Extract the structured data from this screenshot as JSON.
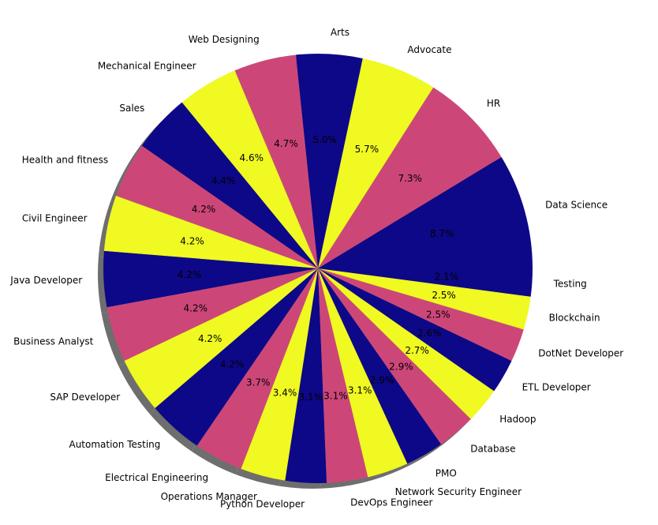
{
  "chart_data": {
    "type": "pie",
    "title": "",
    "shadow": true,
    "categories": [
      "Data Science",
      "HR",
      "Advocate",
      "Arts",
      "Web Designing",
      "Mechanical Engineer",
      "Sales",
      "Health and fitness",
      "Civil Engineer",
      "Java Developer",
      "Business Analyst",
      "SAP Developer",
      "Automation Testing",
      "Electrical Engineering",
      "Operations Manager",
      "Python Developer",
      "DevOps Engineer",
      "Network Security Engineer",
      "PMO",
      "Database",
      "Hadoop",
      "ETL Developer",
      "DotNet Developer",
      "Blockchain",
      "Testing"
    ],
    "values": [
      8.7,
      7.3,
      5.7,
      5.0,
      4.7,
      4.6,
      4.4,
      4.2,
      4.2,
      4.2,
      4.2,
      4.2,
      4.2,
      3.7,
      3.4,
      3.1,
      3.1,
      3.1,
      2.9,
      2.9,
      2.7,
      2.6,
      2.5,
      2.5,
      2.1
    ],
    "percent_labels": [
      "8.7%",
      "7.3%",
      "5.7%",
      "5.0%",
      "4.7%",
      "4.6%",
      "4.4%",
      "4.2%",
      "4.2%",
      "4.2%",
      "4.2%",
      "4.2%",
      "4.2%",
      "3.7%",
      "3.4%",
      "3.1%",
      "3.1%",
      "3.1%",
      "2.9%",
      "2.9%",
      "2.7%",
      "2.6%",
      "2.5%",
      "2.5%",
      "2.1%"
    ],
    "colors": [
      "#0d0887",
      "#cc4778",
      "#f0f921",
      "#0d0887",
      "#cc4778",
      "#f0f921",
      "#0d0887",
      "#cc4778",
      "#f0f921",
      "#0d0887",
      "#cc4778",
      "#f0f921",
      "#0d0887",
      "#cc4778",
      "#f0f921",
      "#0d0887",
      "#cc4778",
      "#f0f921",
      "#0d0887",
      "#cc4778",
      "#f0f921",
      "#0d0887",
      "#cc4778",
      "#f0f921",
      "#0d0887"
    ],
    "start_angle_deg": 0,
    "direction": "counterclockwise"
  }
}
